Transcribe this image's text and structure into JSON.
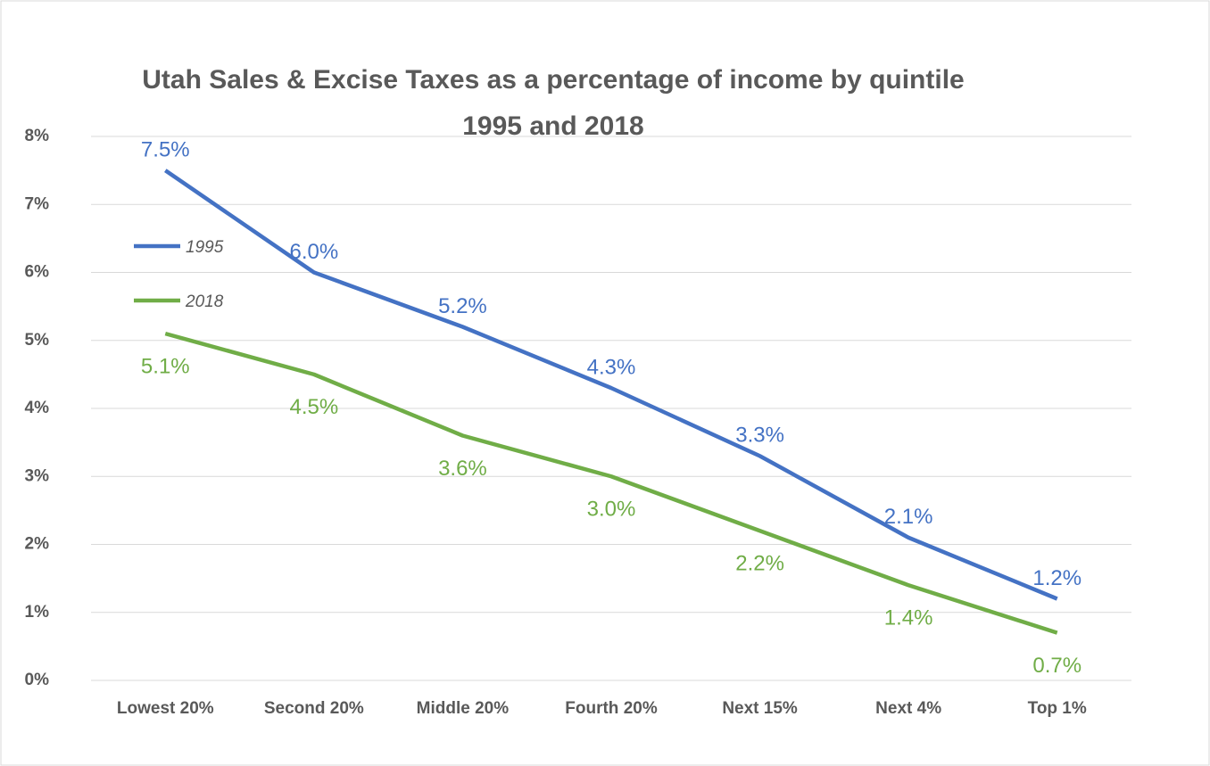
{
  "chart_data": {
    "type": "line",
    "title": "Utah Sales & Excise Taxes as a percentage of income by quintile",
    "subtitle": "1995 and 2018",
    "categories": [
      "Lowest 20%",
      "Second 20%",
      "Middle 20%",
      "Fourth 20%",
      "Next 15%",
      "Next 4%",
      "Top 1%"
    ],
    "series": [
      {
        "name": "1995",
        "color": "#4472c4",
        "label_position": "above",
        "values": [
          7.5,
          6.0,
          5.2,
          4.3,
          3.3,
          2.1,
          1.2
        ],
        "value_labels": [
          "7.5%",
          "6.0%",
          "5.2%",
          "4.3%",
          "3.3%",
          "2.1%",
          "1.2%"
        ]
      },
      {
        "name": "2018",
        "color": "#70ad47",
        "label_position": "below",
        "values": [
          5.1,
          4.5,
          3.6,
          3.0,
          2.2,
          1.4,
          0.7
        ],
        "value_labels": [
          "5.1%",
          "4.5%",
          "3.6%",
          "3.0%",
          "2.2%",
          "1.4%",
          "0.7%"
        ]
      }
    ],
    "ylim": [
      0,
      8
    ],
    "yticks": [
      {
        "value": 0,
        "label": "0%"
      },
      {
        "value": 1,
        "label": "1%"
      },
      {
        "value": 2,
        "label": "2%"
      },
      {
        "value": 3,
        "label": "3%"
      },
      {
        "value": 4,
        "label": "4%"
      },
      {
        "value": 5,
        "label": "5%"
      },
      {
        "value": 6,
        "label": "6%"
      },
      {
        "value": 7,
        "label": "7%"
      },
      {
        "value": 8,
        "label": "8%"
      }
    ],
    "grid": true,
    "legend": "upper left"
  }
}
